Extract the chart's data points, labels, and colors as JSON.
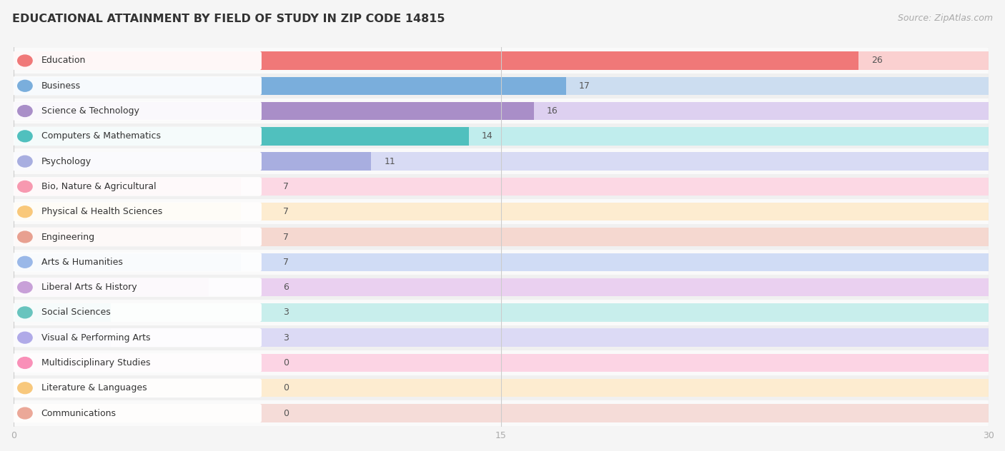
{
  "title": "EDUCATIONAL ATTAINMENT BY FIELD OF STUDY IN ZIP CODE 14815",
  "source": "Source: ZipAtlas.com",
  "categories": [
    "Education",
    "Business",
    "Science & Technology",
    "Computers & Mathematics",
    "Psychology",
    "Bio, Nature & Agricultural",
    "Physical & Health Sciences",
    "Engineering",
    "Arts & Humanities",
    "Liberal Arts & History",
    "Social Sciences",
    "Visual & Performing Arts",
    "Multidisciplinary Studies",
    "Literature & Languages",
    "Communications"
  ],
  "values": [
    26,
    17,
    16,
    14,
    11,
    7,
    7,
    7,
    7,
    6,
    3,
    3,
    0,
    0,
    0
  ],
  "bar_colors": [
    "#f07878",
    "#7aaedc",
    "#a98ec8",
    "#50c0be",
    "#a8aee0",
    "#f799b0",
    "#f9c87a",
    "#e8a090",
    "#9ab8e8",
    "#c8a0d8",
    "#68c4be",
    "#b0aae8",
    "#f990b8",
    "#f8c87c",
    "#eba898"
  ],
  "bg_bar_colors": [
    "#fad0d0",
    "#ccddf0",
    "#ddd0f0",
    "#c0eded",
    "#d8dbf4",
    "#fcd8e4",
    "#fdecd0",
    "#f5d8d0",
    "#d0dcf5",
    "#ead0f0",
    "#c8eeec",
    "#dcdaf5",
    "#fcd4e4",
    "#fdecd0",
    "#f5dcd8"
  ],
  "xlim": [
    0,
    30
  ],
  "xticks": [
    0,
    15,
    30
  ],
  "background_color": "#f5f5f5",
  "row_bg_even": "#f0f0f0",
  "row_bg_odd": "#fafafa",
  "title_fontsize": 11.5,
  "source_fontsize": 9,
  "label_fontsize": 9
}
